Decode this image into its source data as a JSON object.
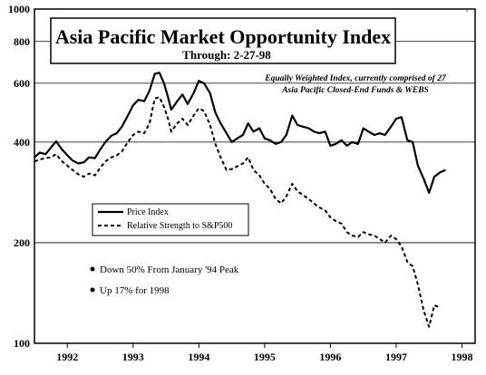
{
  "chart_data": {
    "type": "line",
    "title": "Asia Pacific Market Opportunity Index",
    "subtitle": "Through: 2-27-98",
    "note_lines": [
      "Equally Weighted Index, currently comprised of 27",
      "Asia Pacific Closed-End Funds & WEBS"
    ],
    "y_scale": "log",
    "ylim": [
      100,
      1000
    ],
    "y_ticks": [
      100,
      200,
      400,
      600,
      800,
      1000
    ],
    "y_tick_labels": [
      "100",
      "200",
      "400",
      "600",
      "800",
      "1000"
    ],
    "xlim": [
      1991.5,
      1998.2
    ],
    "x_ticks": [
      1992,
      1993,
      1994,
      1995,
      1996,
      1997,
      1998
    ],
    "x_tick_labels": [
      "1992",
      "1993",
      "1994",
      "1995",
      "1996",
      "1997",
      "1998"
    ],
    "grid": "horizontal",
    "legend_position": "left-middle",
    "series": [
      {
        "name": "Price Index",
        "style": "solid",
        "color": "#000000",
        "points": [
          [
            1991.5,
            360
          ],
          [
            1991.58,
            372
          ],
          [
            1991.67,
            368
          ],
          [
            1991.75,
            385
          ],
          [
            1991.83,
            402
          ],
          [
            1991.92,
            380
          ],
          [
            1992.0,
            365
          ],
          [
            1992.08,
            352
          ],
          [
            1992.17,
            345
          ],
          [
            1992.25,
            348
          ],
          [
            1992.33,
            360
          ],
          [
            1992.42,
            358
          ],
          [
            1992.5,
            380
          ],
          [
            1992.58,
            400
          ],
          [
            1992.67,
            418
          ],
          [
            1992.75,
            425
          ],
          [
            1992.83,
            445
          ],
          [
            1992.92,
            480
          ],
          [
            1993.0,
            515
          ],
          [
            1993.08,
            535
          ],
          [
            1993.17,
            530
          ],
          [
            1993.25,
            570
          ],
          [
            1993.33,
            640
          ],
          [
            1993.4,
            645
          ],
          [
            1993.47,
            600
          ],
          [
            1993.53,
            545
          ],
          [
            1993.58,
            500
          ],
          [
            1993.67,
            530
          ],
          [
            1993.75,
            555
          ],
          [
            1993.83,
            520
          ],
          [
            1993.92,
            560
          ],
          [
            1994.0,
            610
          ],
          [
            1994.08,
            600
          ],
          [
            1994.17,
            560
          ],
          [
            1994.25,
            490
          ],
          [
            1994.33,
            455
          ],
          [
            1994.42,
            425
          ],
          [
            1994.5,
            400
          ],
          [
            1994.58,
            410
          ],
          [
            1994.67,
            420
          ],
          [
            1994.75,
            455
          ],
          [
            1994.83,
            430
          ],
          [
            1994.92,
            440
          ],
          [
            1995.0,
            410
          ],
          [
            1995.08,
            405
          ],
          [
            1995.17,
            395
          ],
          [
            1995.25,
            400
          ],
          [
            1995.33,
            420
          ],
          [
            1995.42,
            480
          ],
          [
            1995.5,
            450
          ],
          [
            1995.58,
            445
          ],
          [
            1995.67,
            440
          ],
          [
            1995.75,
            430
          ],
          [
            1995.83,
            425
          ],
          [
            1995.92,
            430
          ],
          [
            1996.0,
            390
          ],
          [
            1996.08,
            395
          ],
          [
            1996.17,
            405
          ],
          [
            1996.25,
            390
          ],
          [
            1996.33,
            400
          ],
          [
            1996.42,
            395
          ],
          [
            1996.5,
            440
          ],
          [
            1996.58,
            430
          ],
          [
            1996.67,
            420
          ],
          [
            1996.75,
            425
          ],
          [
            1996.83,
            420
          ],
          [
            1996.92,
            445
          ],
          [
            1997.0,
            470
          ],
          [
            1997.08,
            475
          ],
          [
            1997.17,
            405
          ],
          [
            1997.25,
            400
          ],
          [
            1997.33,
            340
          ],
          [
            1997.42,
            310
          ],
          [
            1997.5,
            282
          ],
          [
            1997.58,
            315
          ],
          [
            1997.67,
            325
          ],
          [
            1997.75,
            330
          ]
        ]
      },
      {
        "name": "Relative Strength to S&P500",
        "style": "dashed",
        "color": "#000000",
        "points": [
          [
            1991.5,
            350
          ],
          [
            1991.58,
            355
          ],
          [
            1991.67,
            358
          ],
          [
            1991.75,
            360
          ],
          [
            1991.83,
            368
          ],
          [
            1991.92,
            350
          ],
          [
            1992.0,
            340
          ],
          [
            1992.08,
            330
          ],
          [
            1992.17,
            320
          ],
          [
            1992.25,
            315
          ],
          [
            1992.33,
            322
          ],
          [
            1992.42,
            318
          ],
          [
            1992.5,
            335
          ],
          [
            1992.58,
            350
          ],
          [
            1992.67,
            360
          ],
          [
            1992.75,
            365
          ],
          [
            1992.83,
            375
          ],
          [
            1992.92,
            400
          ],
          [
            1993.0,
            420
          ],
          [
            1993.08,
            430
          ],
          [
            1993.17,
            425
          ],
          [
            1993.25,
            455
          ],
          [
            1993.33,
            540
          ],
          [
            1993.4,
            545
          ],
          [
            1993.47,
            510
          ],
          [
            1993.53,
            470
          ],
          [
            1993.58,
            430
          ],
          [
            1993.67,
            455
          ],
          [
            1993.75,
            470
          ],
          [
            1993.83,
            450
          ],
          [
            1993.92,
            480
          ],
          [
            1994.0,
            505
          ],
          [
            1994.08,
            495
          ],
          [
            1994.17,
            450
          ],
          [
            1994.25,
            395
          ],
          [
            1994.33,
            360
          ],
          [
            1994.42,
            330
          ],
          [
            1994.5,
            332
          ],
          [
            1994.58,
            338
          ],
          [
            1994.67,
            345
          ],
          [
            1994.75,
            360
          ],
          [
            1994.83,
            330
          ],
          [
            1994.92,
            318
          ],
          [
            1995.0,
            300
          ],
          [
            1995.08,
            290
          ],
          [
            1995.17,
            270
          ],
          [
            1995.25,
            262
          ],
          [
            1995.33,
            275
          ],
          [
            1995.42,
            300
          ],
          [
            1995.5,
            285
          ],
          [
            1995.58,
            278
          ],
          [
            1995.67,
            270
          ],
          [
            1995.75,
            262
          ],
          [
            1995.83,
            255
          ],
          [
            1995.92,
            250
          ],
          [
            1996.0,
            238
          ],
          [
            1996.08,
            232
          ],
          [
            1996.17,
            228
          ],
          [
            1996.25,
            215
          ],
          [
            1996.33,
            210
          ],
          [
            1996.42,
            208
          ],
          [
            1996.5,
            215
          ],
          [
            1996.58,
            212
          ],
          [
            1996.67,
            210
          ],
          [
            1996.75,
            205
          ],
          [
            1996.83,
            200
          ],
          [
            1996.92,
            210
          ],
          [
            1997.0,
            205
          ],
          [
            1997.08,
            195
          ],
          [
            1997.17,
            175
          ],
          [
            1997.25,
            170
          ],
          [
            1997.33,
            150
          ],
          [
            1997.42,
            125
          ],
          [
            1997.5,
            112
          ],
          [
            1997.58,
            130
          ],
          [
            1997.67,
            128
          ]
        ]
      }
    ],
    "annotations": [
      "Down 50% From January '94 Peak",
      "Up 17% for 1998"
    ]
  }
}
